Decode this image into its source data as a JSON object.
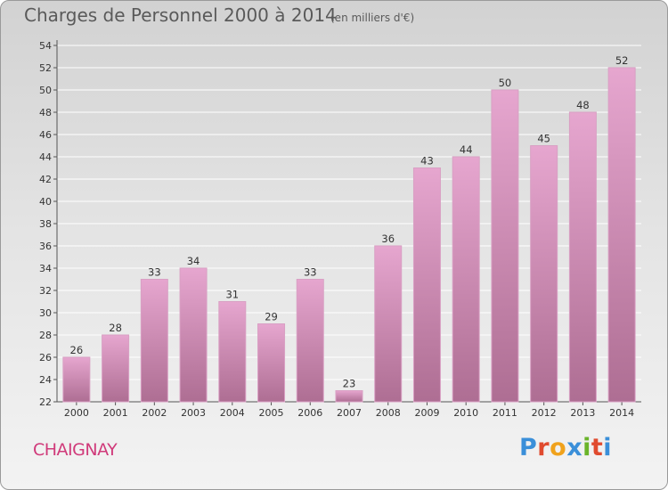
{
  "header": {
    "title": "Charges de Personnel 2000 à 2014",
    "subtitle": "(en milliers d'€)"
  },
  "footer": {
    "commune": "CHAIGNAY",
    "logo_text": "Proxiti"
  },
  "colors": {
    "bar_top": "#e6a6cf",
    "bar_bottom": "#ae6e93",
    "commune_text": "#d03a7a",
    "grid": "#ffffff",
    "logo_letters": [
      "#3a8fd9",
      "#e04b2f",
      "#f0a21c",
      "#3a8fd9",
      "#6ab42a",
      "#e04b2f",
      "#3a8fd9"
    ]
  },
  "chart_data": {
    "type": "bar",
    "title": "Charges de Personnel 2000 à 2014",
    "subtitle": "(en milliers d'€)",
    "xlabel": "",
    "ylabel": "",
    "categories": [
      "2000",
      "2001",
      "2002",
      "2003",
      "2004",
      "2005",
      "2006",
      "2007",
      "2008",
      "2009",
      "2010",
      "2011",
      "2012",
      "2013",
      "2014"
    ],
    "values": [
      26,
      28,
      33,
      34,
      31,
      29,
      33,
      23,
      36,
      43,
      44,
      50,
      45,
      48,
      52
    ],
    "ylim": [
      22,
      54
    ],
    "yticks": [
      22,
      24,
      26,
      28,
      30,
      32,
      34,
      36,
      38,
      40,
      42,
      44,
      46,
      48,
      50,
      52,
      54
    ],
    "grid": true,
    "legend": "none"
  }
}
